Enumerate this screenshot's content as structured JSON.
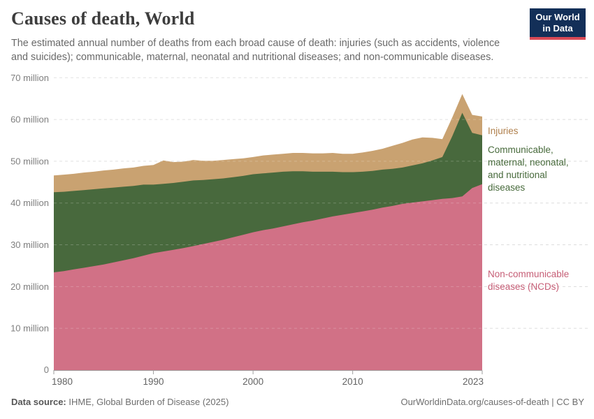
{
  "header": {
    "title": "Causes of death, World",
    "subtitle": "The estimated annual number of deaths from each broad cause of death: injuries (such as accidents, violence and suicides); communicable, maternal, neonatal and nutritional diseases; and non-communicable diseases.",
    "logo": {
      "line1": "Our World",
      "line2": "in Data",
      "bg_color": "#132f58",
      "accent_color": "#d94a56"
    }
  },
  "chart_data": {
    "type": "area",
    "stacked": true,
    "title": "Causes of death, World",
    "xlabel": "",
    "ylabel": "",
    "ylim": [
      0,
      70
    ],
    "grid": "dashed-horizontal",
    "legend_position": "right-annotations",
    "years": [
      1980,
      1981,
      1982,
      1983,
      1984,
      1985,
      1986,
      1987,
      1988,
      1989,
      1990,
      1991,
      1992,
      1993,
      1994,
      1995,
      1996,
      1997,
      1998,
      1999,
      2000,
      2001,
      2002,
      2003,
      2004,
      2005,
      2006,
      2007,
      2008,
      2009,
      2010,
      2011,
      2012,
      2013,
      2014,
      2015,
      2016,
      2017,
      2018,
      2019,
      2020,
      2021,
      2022,
      2023
    ],
    "unit": "million deaths",
    "series": [
      {
        "id": "ncd",
        "name": "Non-communicable diseases (NCDs)",
        "color": "#d17186",
        "label_color": "#c65e76",
        "values": [
          23.4,
          23.7,
          24.1,
          24.5,
          24.9,
          25.3,
          25.8,
          26.3,
          26.8,
          27.4,
          28.0,
          28.4,
          28.8,
          29.2,
          29.7,
          30.2,
          30.7,
          31.2,
          31.8,
          32.4,
          33.0,
          33.5,
          33.9,
          34.4,
          34.9,
          35.4,
          35.8,
          36.3,
          36.8,
          37.2,
          37.6,
          38.0,
          38.4,
          38.9,
          39.3,
          39.8,
          40.1,
          40.4,
          40.7,
          41.0,
          41.2,
          41.6,
          43.6,
          44.5
        ]
      },
      {
        "id": "cmnn",
        "name": "Communicable, maternal, neonatal, and nutritional diseases",
        "color": "#48693d",
        "label_color": "#476a3b",
        "values": [
          19.2,
          19.0,
          18.8,
          18.6,
          18.4,
          18.2,
          17.9,
          17.6,
          17.3,
          17.0,
          16.4,
          16.2,
          16.0,
          15.9,
          15.7,
          15.3,
          15.0,
          14.7,
          14.4,
          14.1,
          13.9,
          13.6,
          13.4,
          13.1,
          12.7,
          12.2,
          11.7,
          11.2,
          10.7,
          10.2,
          9.8,
          9.5,
          9.3,
          9.1,
          8.9,
          8.7,
          8.9,
          9.1,
          9.5,
          10.0,
          14.8,
          20.0,
          13.2,
          11.7
        ]
      },
      {
        "id": "injuries",
        "name": "Injuries",
        "color": "#c9a271",
        "label_color": "#b0804d",
        "values": [
          4.0,
          4.1,
          4.1,
          4.2,
          4.2,
          4.3,
          4.3,
          4.4,
          4.4,
          4.5,
          4.7,
          5.6,
          5.0,
          4.8,
          4.9,
          4.6,
          4.4,
          4.4,
          4.3,
          4.2,
          4.1,
          4.3,
          4.3,
          4.3,
          4.4,
          4.4,
          4.4,
          4.4,
          4.5,
          4.4,
          4.4,
          4.6,
          4.8,
          5.0,
          5.5,
          5.9,
          6.2,
          6.2,
          5.4,
          4.3,
          4.5,
          4.5,
          4.3,
          4.5
        ]
      }
    ],
    "yticks": [
      {
        "value": 0,
        "label": "0"
      },
      {
        "value": 10,
        "label": "10 million"
      },
      {
        "value": 20,
        "label": "20 million"
      },
      {
        "value": 30,
        "label": "30 million"
      },
      {
        "value": 40,
        "label": "40 million"
      },
      {
        "value": 50,
        "label": "50 million"
      },
      {
        "value": 60,
        "label": "60 million"
      },
      {
        "value": 70,
        "label": "70 million"
      }
    ],
    "xticks": [
      {
        "year": 1980,
        "label": "1980",
        "align": "start"
      },
      {
        "year": 1990,
        "label": "1990",
        "align": "middle"
      },
      {
        "year": 2000,
        "label": "2000",
        "align": "middle"
      },
      {
        "year": 2010,
        "label": "2010",
        "align": "middle"
      },
      {
        "year": 2023,
        "label": "2023",
        "align": "end"
      }
    ]
  },
  "footer": {
    "source_label": "Data source:",
    "source_value": " IHME, Global Burden of Disease (2025)",
    "credit": "OurWorldinData.org/causes-of-death | CC BY"
  }
}
